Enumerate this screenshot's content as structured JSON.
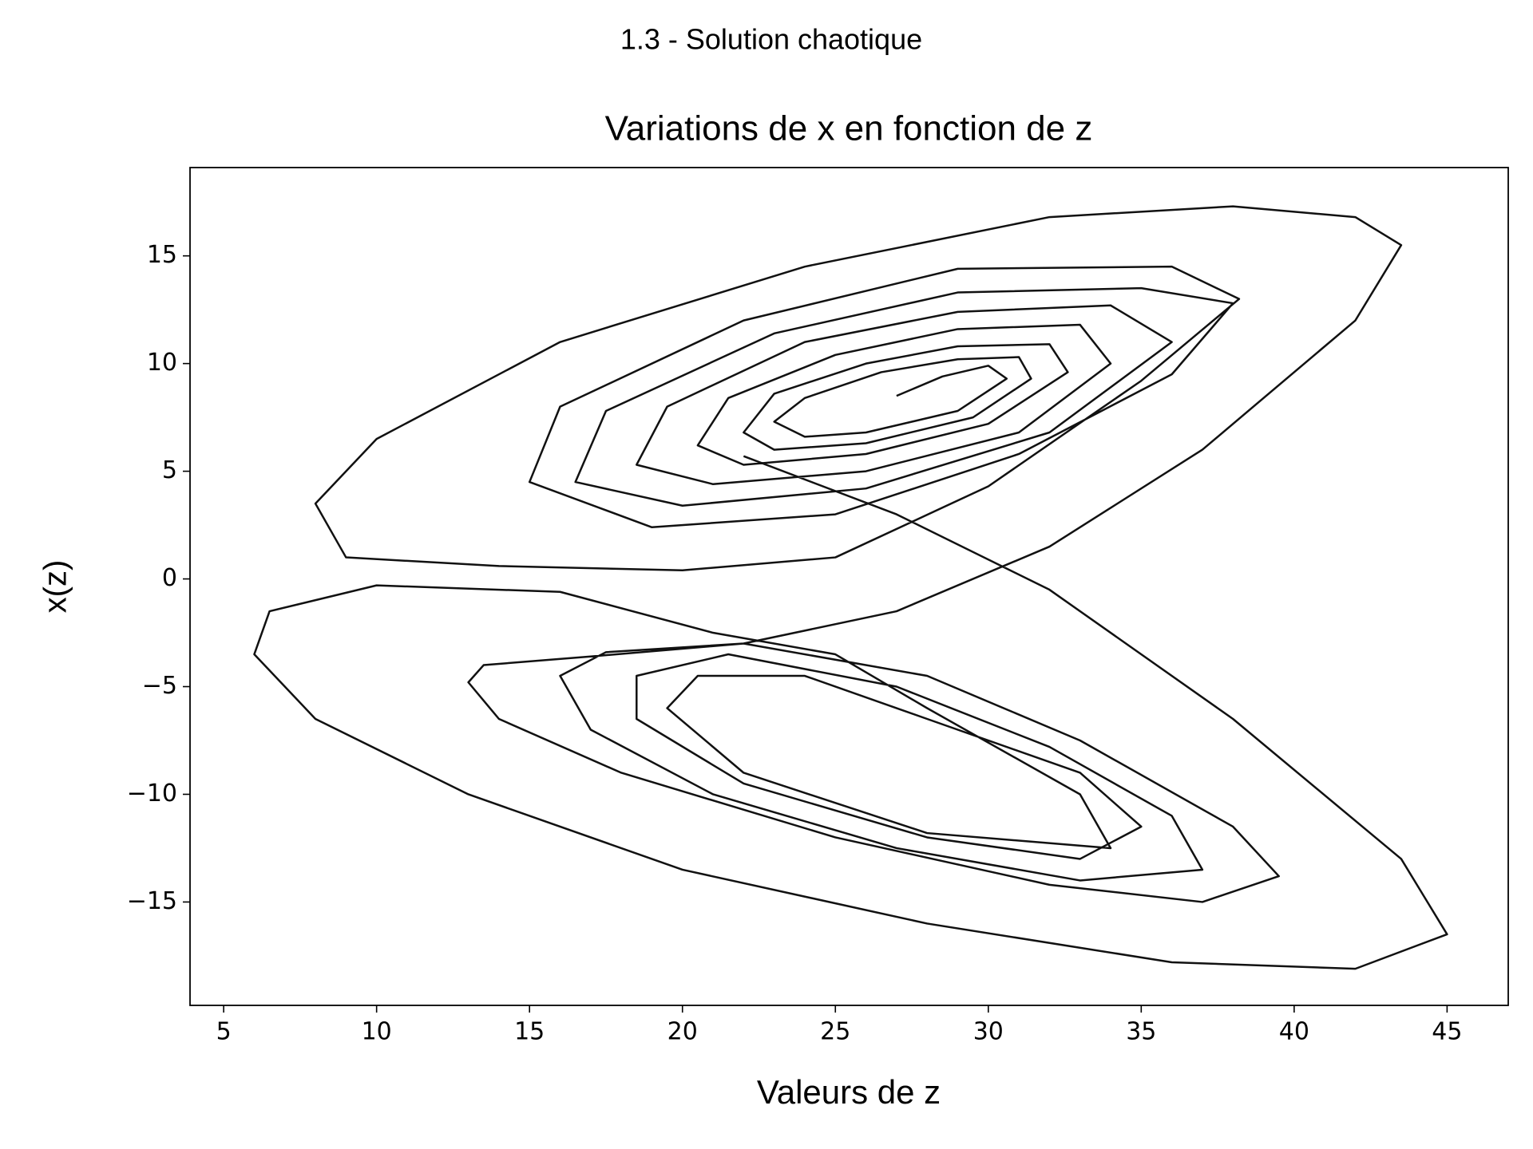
{
  "chart_data": {
    "type": "line",
    "suptitle": "1.3 - Solution chaotique",
    "title": "Variations de x en fonction de z",
    "x_label": "Valeurs de z",
    "y_label": "x(z)",
    "color": "#111111",
    "xlim": [
      3.9,
      47
    ],
    "ylim": [
      -19.8,
      19.1
    ],
    "xticks": [
      5,
      10,
      15,
      20,
      25,
      30,
      35,
      40,
      45
    ],
    "yticks": [
      {
        "value": -15,
        "label": "−15"
      },
      {
        "value": -10,
        "label": "−10"
      },
      {
        "value": -5,
        "label": "−5"
      },
      0,
      5,
      10,
      15
    ],
    "x": [
      27,
      28.5,
      30,
      30.6,
      29,
      26,
      24,
      23,
      24,
      26.5,
      29,
      31,
      31.4,
      29.5,
      26,
      23,
      22,
      23,
      26,
      29,
      32,
      32.6,
      30,
      26,
      22,
      20.5,
      21.5,
      25,
      29,
      33,
      34,
      31,
      26,
      21,
      18.5,
      19.5,
      24,
      29,
      34,
      36,
      32,
      26,
      20,
      16.5,
      17.5,
      23,
      29,
      35,
      38,
      36,
      31,
      25,
      19,
      15,
      16,
      22,
      29,
      36,
      38.2,
      35,
      30,
      25,
      20,
      14,
      9,
      8,
      10,
      16,
      24,
      32,
      38,
      42,
      43.5,
      42,
      37,
      32,
      27,
      22,
      17,
      13.5,
      13,
      14,
      18,
      25,
      32,
      37,
      39.5,
      38,
      33,
      28,
      22,
      17.5,
      16,
      17,
      21,
      27,
      33,
      37,
      36,
      32,
      27,
      21.5,
      18.5,
      18.5,
      22,
      28,
      33,
      35,
      33,
      28,
      24,
      20.5,
      19.5,
      22,
      28,
      34,
      33,
      28,
      25,
      21,
      16,
      10,
      6.5,
      6,
      8,
      13,
      20,
      28,
      36,
      42,
      45,
      43.5,
      38,
      32,
      27,
      22
    ],
    "values": [
      8.5,
      9.4,
      9.9,
      9.3,
      7.8,
      6.8,
      6.6,
      7.3,
      8.4,
      9.6,
      10.2,
      10.3,
      9.3,
      7.5,
      6.3,
      6,
      6.8,
      8.6,
      10,
      10.8,
      10.9,
      9.6,
      7.2,
      5.8,
      5.3,
      6.2,
      8.4,
      10.4,
      11.6,
      11.8,
      10,
      6.8,
      5,
      4.4,
      5.3,
      8,
      11,
      12.4,
      12.7,
      11,
      6.8,
      4.2,
      3.4,
      4.5,
      7.8,
      11.4,
      13.3,
      13.5,
      12.8,
      9.5,
      5.8,
      3,
      2.4,
      4.5,
      8,
      12,
      14.4,
      14.5,
      13,
      9.2,
      4.3,
      1,
      0.4,
      0.6,
      1,
      3.5,
      6.5,
      11,
      14.5,
      16.8,
      17.3,
      16.8,
      15.5,
      12,
      6,
      1.5,
      -1.5,
      -3,
      -3.6,
      -4,
      -4.8,
      -6.5,
      -9,
      -12,
      -14.2,
      -15,
      -13.8,
      -11.5,
      -7.5,
      -4.5,
      -3,
      -3.4,
      -4.5,
      -7,
      -10,
      -12.5,
      -14,
      -13.5,
      -11,
      -7.8,
      -5,
      -3.5,
      -4.5,
      -6.5,
      -9.5,
      -12,
      -13,
      -11.5,
      -9,
      -6.5,
      -4.5,
      -4.5,
      -6,
      -9,
      -11.8,
      -12.5,
      -10,
      -6,
      -3.5,
      -2.5,
      -0.6,
      -0.3,
      -1.5,
      -3.5,
      -6.5,
      -10,
      -13.5,
      -16,
      -17.8,
      -18.1,
      -16.5,
      -13,
      -6.5,
      -0.5,
      3,
      5.7
    ]
  }
}
